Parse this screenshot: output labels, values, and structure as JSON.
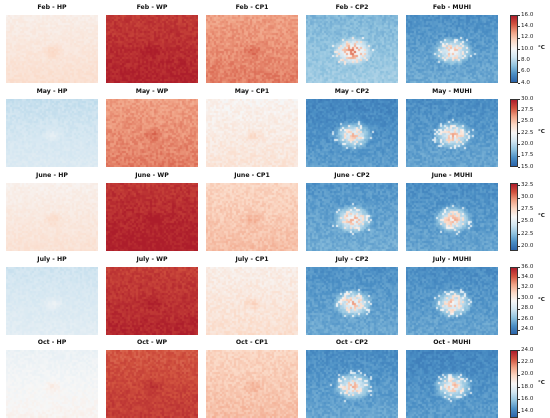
{
  "chart_data": {
    "type": "heatmap",
    "unit": "°C",
    "columns": [
      "HP",
      "WP",
      "CP1",
      "CP2",
      "MUHI"
    ],
    "colormap": {
      "name": "RdBu_r",
      "stops": [
        "#2a63a8",
        "#4b8fc5",
        "#92c4df",
        "#d3e6f1",
        "#f7f7f7",
        "#fbd9c6",
        "#f0a285",
        "#d2533f",
        "#ad1d2b"
      ]
    },
    "rows": [
      {
        "month": "Feb",
        "titles": [
          "Feb - HP",
          "Feb - WP",
          "Feb - CP1",
          "Feb - CP2",
          "Feb - MUHI"
        ],
        "levels": [
          0.57,
          0.96,
          0.78,
          0.25,
          0.16
        ],
        "colorbar": {
          "min": 4.0,
          "max": 16.0,
          "ticks": [
            "16.0",
            "14.0",
            "12.0",
            "10.0",
            "8.0",
            "6.0",
            "4.0"
          ]
        }
      },
      {
        "month": "May",
        "titles": [
          "May - HP",
          "May - WP",
          "May - CP1",
          "May - CP2",
          "May - MUHI"
        ],
        "levels": [
          0.38,
          0.78,
          0.55,
          0.13,
          0.15
        ],
        "colorbar": {
          "min": 15.0,
          "max": 30.0,
          "ticks": [
            "30.0",
            "27.5",
            "25.0",
            "22.5",
            "20.0",
            "17.5",
            "15.0"
          ]
        }
      },
      {
        "month": "June",
        "titles": [
          "June - HP",
          "June - WP",
          "June - CP1",
          "June - CP2",
          "June - MUHI"
        ],
        "levels": [
          0.56,
          0.97,
          0.66,
          0.17,
          0.15
        ],
        "colorbar": {
          "min": 19.0,
          "max": 33.0,
          "ticks": [
            "32.5",
            "30.0",
            "27.5",
            "25.0",
            "22.5",
            "20.0"
          ]
        }
      },
      {
        "month": "July",
        "titles": [
          "July - HP",
          "July - WP",
          "July - CP1",
          "July - CP2",
          "July - MUHI"
        ],
        "levels": [
          0.4,
          0.95,
          0.57,
          0.16,
          0.15
        ],
        "colorbar": {
          "min": 23.0,
          "max": 36.0,
          "ticks": [
            "36.0",
            "34.0",
            "32.0",
            "30.0",
            "28.0",
            "26.0",
            "24.0"
          ]
        }
      },
      {
        "month": "Oct",
        "titles": [
          "Oct - HP",
          "Oct - WP",
          "Oct - CP1",
          "Oct - CP2",
          "Oct - MUHI"
        ],
        "levels": [
          0.49,
          0.9,
          0.66,
          0.15,
          0.13
        ],
        "colorbar": {
          "min": 13.0,
          "max": 24.0,
          "ticks": [
            "24.0",
            "22.0",
            "20.0",
            "18.0",
            "16.0",
            "14.0"
          ]
        }
      }
    ]
  }
}
